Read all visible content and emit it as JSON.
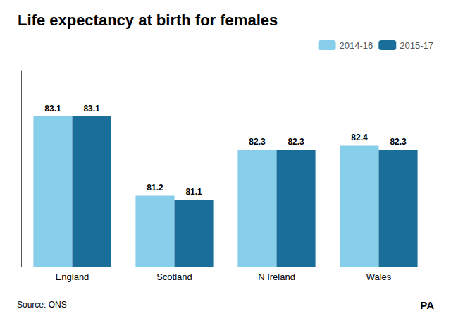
{
  "chart_data": {
    "type": "bar",
    "title": "Life expectancy at birth for females",
    "categories": [
      "England",
      "Scotland",
      "N Ireland",
      "Wales"
    ],
    "series": [
      {
        "name": "2014-16",
        "color": "#87CEEB",
        "values": [
          83.1,
          81.2,
          82.3,
          82.4
        ]
      },
      {
        "name": "2015-17",
        "color": "#1a6f9a",
        "values": [
          83.1,
          81.1,
          82.3,
          82.3
        ]
      }
    ],
    "ylim": [
      79.5,
      84.2
    ],
    "yticks": [],
    "tick_labels": "x",
    "grid": false,
    "data_labels": true,
    "legend": "upper right",
    "annotations": [
      "Source: ONS",
      "PA"
    ]
  }
}
